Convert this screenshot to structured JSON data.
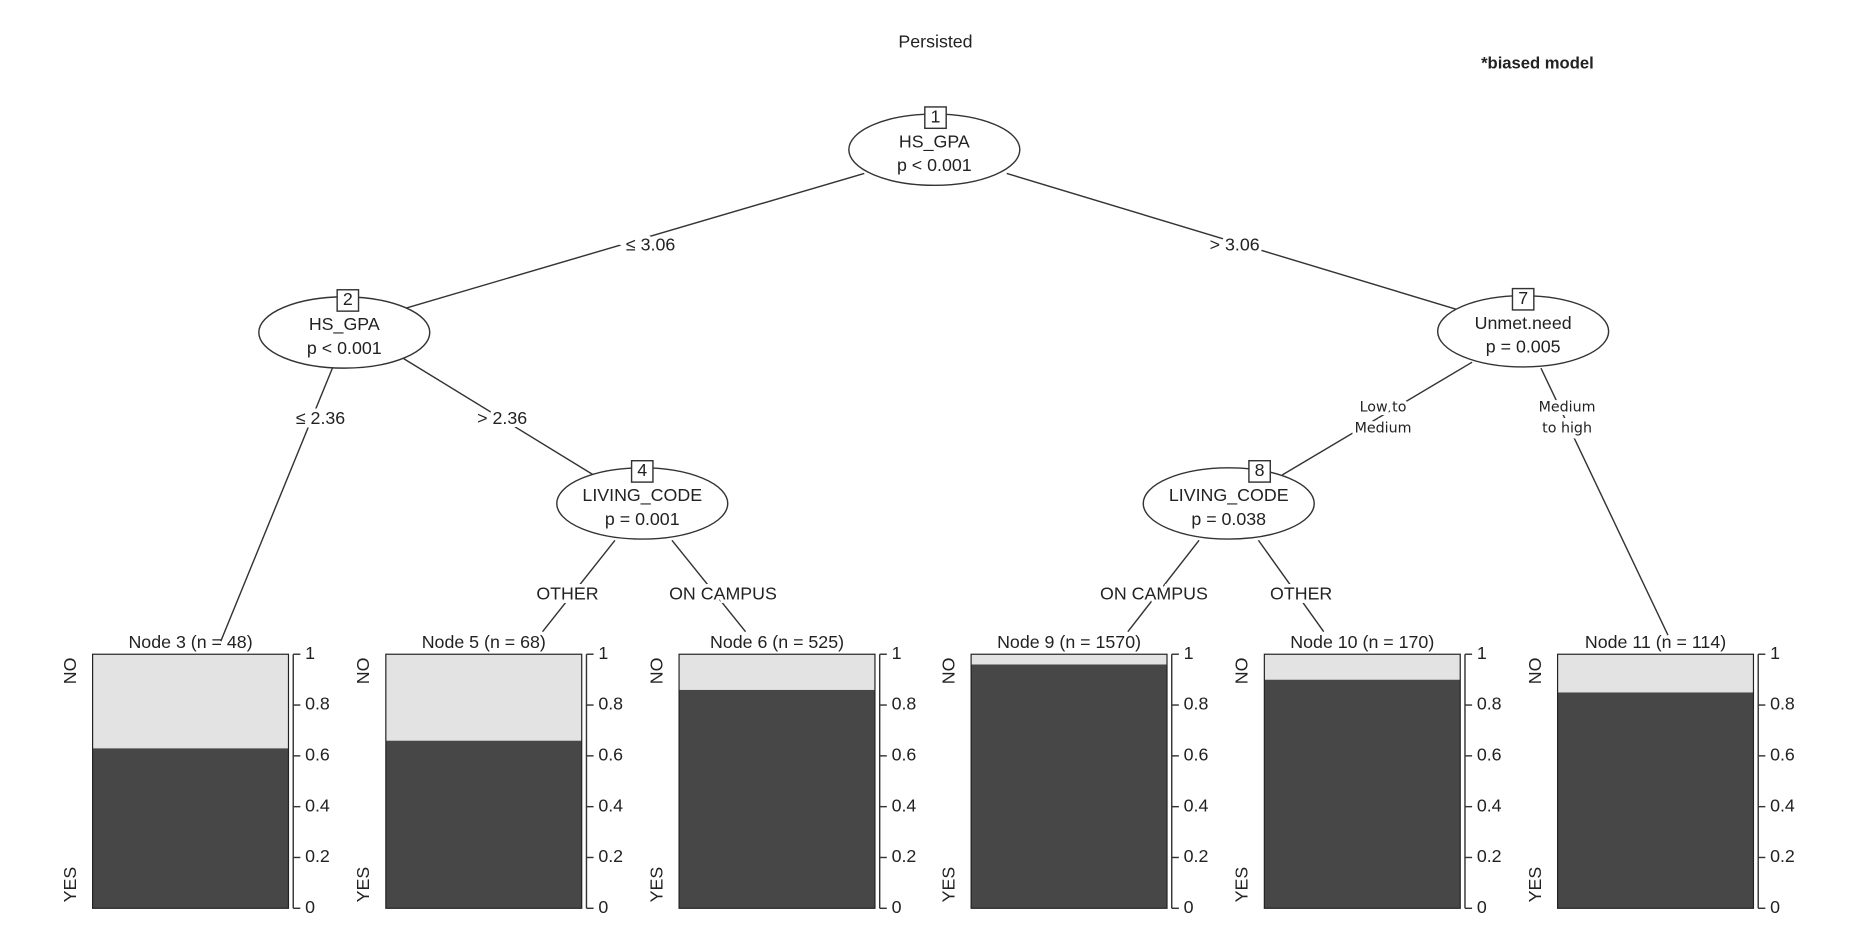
{
  "title": "Persisted",
  "annotation": "*biased model",
  "inner_nodes": [
    {
      "id": "1",
      "variable": "HS_GPA",
      "p": "p < 0.001"
    },
    {
      "id": "2",
      "variable": "HS_GPA",
      "p": "p < 0.001"
    },
    {
      "id": "4",
      "variable": "LIVING_CODE",
      "p": "p = 0.001"
    },
    {
      "id": "7",
      "variable": "Unmet.need",
      "p": "p = 0.005"
    },
    {
      "id": "8",
      "variable": "LIVING_CODE",
      "p": "p = 0.038"
    }
  ],
  "edges": [
    {
      "lines": [
        "≤ 3.06"
      ]
    },
    {
      "lines": [
        "> 3.06"
      ]
    },
    {
      "lines": [
        "≤ 2.36"
      ]
    },
    {
      "lines": [
        "> 2.36"
      ]
    },
    {
      "lines": [
        "OTHER"
      ]
    },
    {
      "lines": [
        "ON CAMPUS"
      ]
    },
    {
      "lines": [
        "Low to",
        "Medium"
      ]
    },
    {
      "lines": [
        "Medium",
        "to high"
      ]
    },
    {
      "lines": [
        "ON CAMPUS"
      ]
    },
    {
      "lines": [
        "OTHER"
      ]
    }
  ],
  "terminals": [
    {
      "label": "Node 3 (n = 48)",
      "yes": 0.63,
      "no": 0.37
    },
    {
      "label": "Node 5 (n = 68)",
      "yes": 0.66,
      "no": 0.34
    },
    {
      "label": "Node 6 (n = 525)",
      "yes": 0.86,
      "no": 0.14
    },
    {
      "label": "Node 9 (n = 1570)",
      "yes": 0.96,
      "no": 0.04
    },
    {
      "label": "Node 10 (n = 170)",
      "yes": 0.9,
      "no": 0.1
    },
    {
      "label": "Node 11 (n = 114)",
      "yes": 0.85,
      "no": 0.15
    }
  ],
  "class_labels": [
    "NO",
    "YES"
  ],
  "ylim": [
    0,
    1
  ],
  "yticks": [
    0,
    0.2,
    0.4,
    0.6,
    0.8,
    1
  ]
}
